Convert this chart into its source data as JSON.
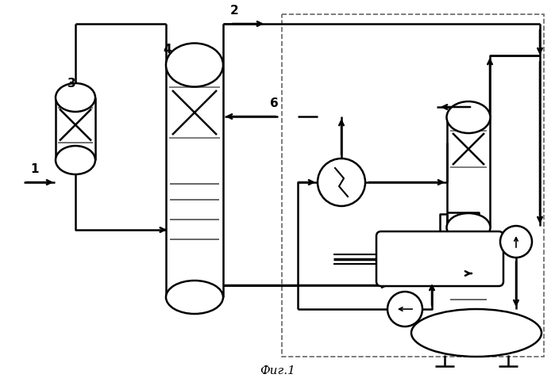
{
  "title": "Фиг.1",
  "bg_color": "#ffffff",
  "line_color": "#000000",
  "fig_width": 6.99,
  "fig_height": 4.82,
  "dpi": 100
}
